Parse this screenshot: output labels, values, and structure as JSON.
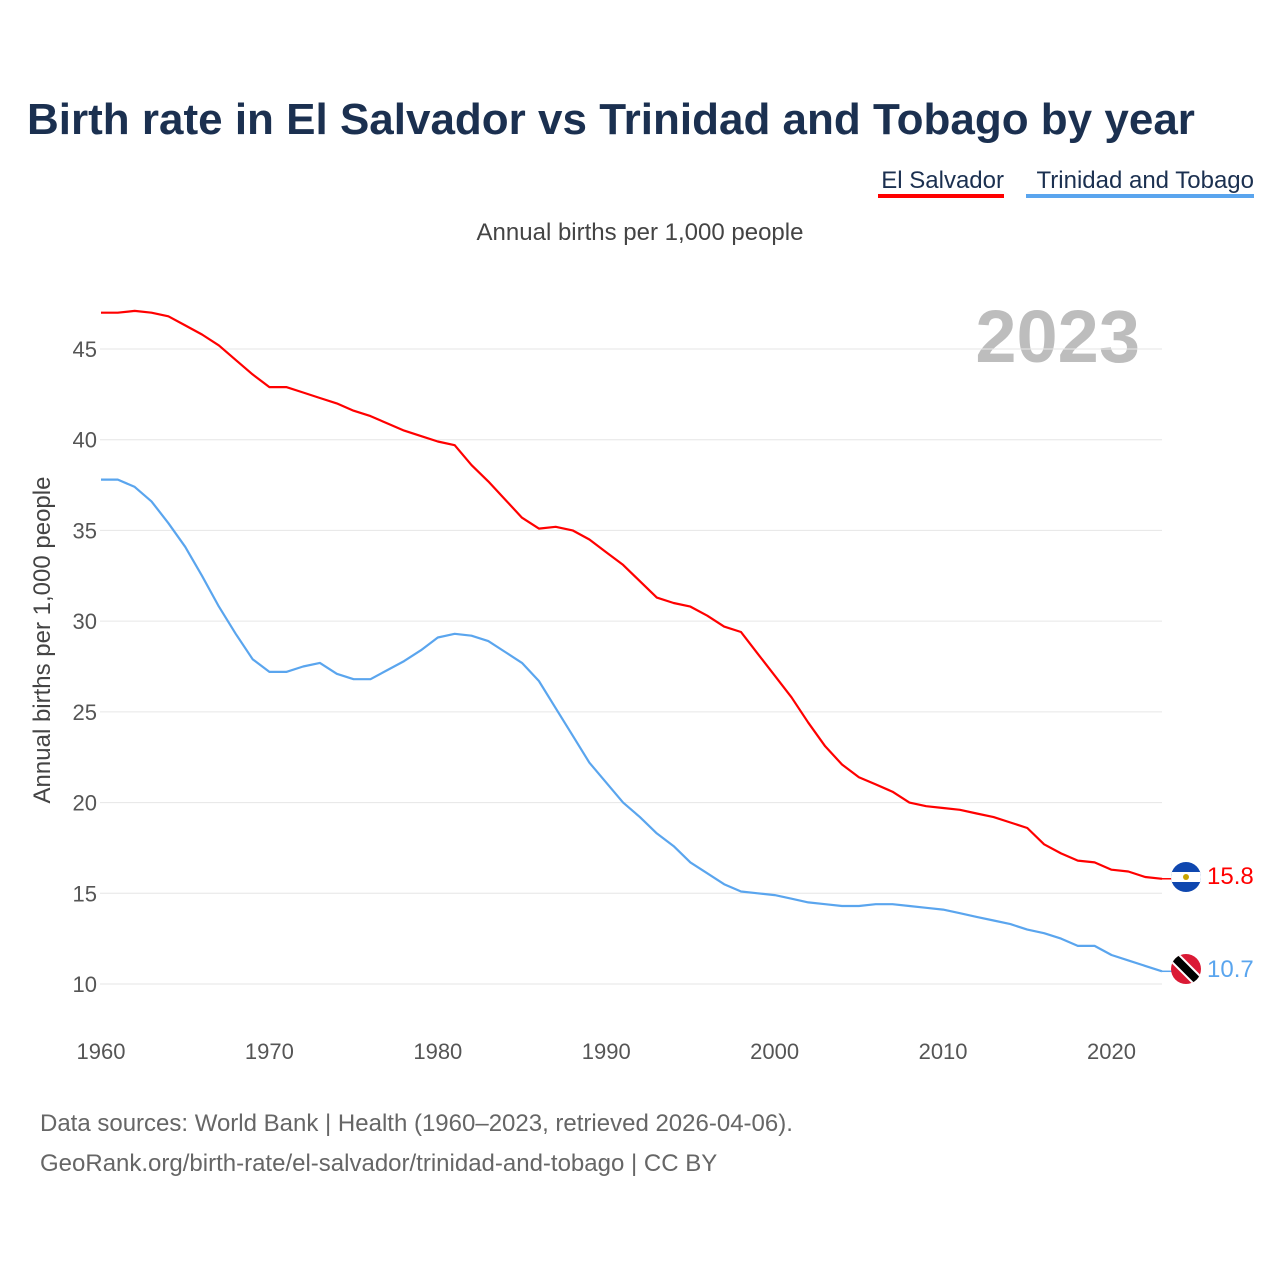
{
  "chart_data": {
    "type": "line",
    "title": "Birth rate in El Salvador vs Trinidad and Tobago by year",
    "subtitle": "Annual births per 1,000 people",
    "ylabel": "Annual births per 1,000 people",
    "xlabel": "",
    "year_label": "2023",
    "xlim": [
      1960,
      2023
    ],
    "ylim": [
      10,
      45
    ],
    "x_ticks": [
      1960,
      1970,
      1980,
      1990,
      2000,
      2010,
      2020
    ],
    "y_ticks": [
      10,
      15,
      20,
      25,
      30,
      35,
      40,
      45
    ],
    "grid": true,
    "legend_position": "top-right",
    "x": [
      1960,
      1961,
      1962,
      1963,
      1964,
      1965,
      1966,
      1967,
      1968,
      1969,
      1970,
      1971,
      1972,
      1973,
      1974,
      1975,
      1976,
      1977,
      1978,
      1979,
      1980,
      1981,
      1982,
      1983,
      1984,
      1985,
      1986,
      1987,
      1988,
      1989,
      1990,
      1991,
      1992,
      1993,
      1994,
      1995,
      1996,
      1997,
      1998,
      1999,
      2000,
      2001,
      2002,
      2003,
      2004,
      2005,
      2006,
      2007,
      2008,
      2009,
      2010,
      2011,
      2012,
      2013,
      2014,
      2015,
      2016,
      2017,
      2018,
      2019,
      2020,
      2021,
      2022,
      2023
    ],
    "series": [
      {
        "name": "El Salvador",
        "color": "#ff0000",
        "end_label": "15.8",
        "values": [
          47.0,
          47.0,
          47.1,
          47.0,
          46.8,
          46.3,
          45.8,
          45.2,
          44.4,
          43.6,
          42.9,
          42.9,
          42.6,
          42.3,
          42.0,
          41.6,
          41.3,
          40.9,
          40.5,
          40.2,
          39.9,
          39.7,
          38.6,
          37.7,
          36.7,
          35.7,
          35.1,
          35.2,
          35.0,
          34.5,
          33.8,
          33.1,
          32.2,
          31.3,
          31.0,
          30.8,
          30.3,
          29.7,
          29.4,
          28.2,
          27.0,
          25.8,
          24.4,
          23.1,
          22.1,
          21.4,
          21.0,
          20.6,
          20.0,
          19.8,
          19.7,
          19.6,
          19.4,
          19.2,
          18.9,
          18.6,
          17.7,
          17.2,
          16.8,
          16.7,
          16.3,
          16.2,
          15.9,
          15.8
        ]
      },
      {
        "name": "Trinidad and Tobago",
        "color": "#5aa5ee",
        "end_label": "10.7",
        "values": [
          37.8,
          37.8,
          37.4,
          36.6,
          35.4,
          34.1,
          32.5,
          30.8,
          29.3,
          27.9,
          27.2,
          27.2,
          27.5,
          27.7,
          27.1,
          26.8,
          26.8,
          27.3,
          27.8,
          28.4,
          29.1,
          29.3,
          29.2,
          28.9,
          28.3,
          27.7,
          26.7,
          25.2,
          23.7,
          22.2,
          21.1,
          20.0,
          19.2,
          18.3,
          17.6,
          16.7,
          16.1,
          15.5,
          15.1,
          15.0,
          14.9,
          14.7,
          14.5,
          14.4,
          14.3,
          14.3,
          14.4,
          14.4,
          14.3,
          14.2,
          14.1,
          13.9,
          13.7,
          13.5,
          13.3,
          13.0,
          12.8,
          12.5,
          12.1,
          12.1,
          11.6,
          11.3,
          11.0,
          10.7
        ]
      }
    ]
  },
  "footer": {
    "line1": "Data sources: World Bank | Health (1960–2023, retrieved 2026-04-06).",
    "line2": "GeoRank.org/birth-rate/el-salvador/trinidad-and-tobago | CC BY"
  }
}
